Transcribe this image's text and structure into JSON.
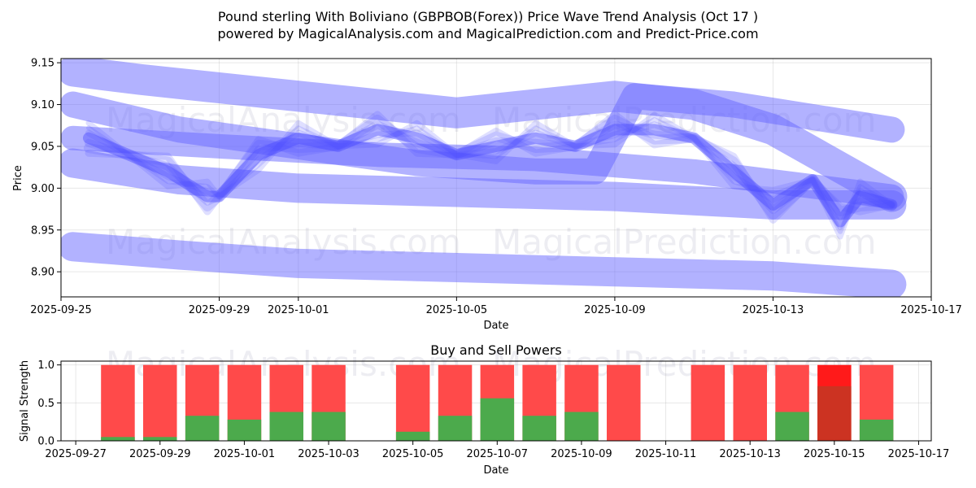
{
  "chart_data": [
    {
      "type": "line",
      "title_line1": "Pound sterling With Boliviano (GBPBOB(Forex)) Price Wave Trend Analysis (Oct 17 )",
      "title_line2": "powered by MagicalAnalysis.com and MagicalPrediction.com and Predict-Price.com",
      "xlabel": "Date",
      "ylabel": "Price",
      "x_ticks": [
        "2025-09-25",
        "2025-09-29",
        "2025-10-01",
        "2025-10-05",
        "2025-10-09",
        "2025-10-13",
        "2025-10-17"
      ],
      "x_tick_days": [
        0,
        4,
        6,
        10,
        14,
        18,
        22
      ],
      "xlim_days": [
        0,
        22
      ],
      "y_ticks": [
        "8.90",
        "8.95",
        "9.00",
        "9.05",
        "9.10",
        "9.15"
      ],
      "y_tick_values": [
        8.9,
        8.95,
        9.0,
        9.05,
        9.1,
        9.15
      ],
      "ylim": [
        8.87,
        9.155
      ],
      "watermarks": [
        "MagicalAnalysis.com",
        "MagicalPrediction.com"
      ],
      "band_color": "#6666ff",
      "series": [
        {
          "name": "price",
          "x": [
            0.7,
            1.7,
            2.7,
            3.7,
            4.0,
            5.0,
            6.0,
            7.0,
            8.0,
            9.0,
            10.0,
            11.0,
            12.0,
            13.0,
            14.0,
            15.0,
            16.0,
            17.0,
            18.0,
            19.0,
            19.7,
            20.2,
            21.0
          ],
          "values": [
            9.06,
            9.04,
            9.02,
            8.99,
            8.99,
            9.04,
            9.06,
            9.05,
            9.07,
            9.06,
            9.04,
            9.05,
            9.06,
            9.05,
            9.07,
            9.07,
            9.06,
            9.02,
            8.98,
            9.01,
            8.96,
            8.99,
            8.98
          ]
        }
      ],
      "trend_bands": [
        {
          "x": [
            0.3,
            2.0,
            4.0,
            6.0,
            8.0,
            10.0,
            12.0,
            14.0,
            16.0,
            18.0,
            21.0
          ],
          "values": [
            9.14,
            9.13,
            9.12,
            9.11,
            9.1,
            9.09,
            9.1,
            9.11,
            9.1,
            9.07,
            8.99
          ]
        },
        {
          "x": [
            0.3,
            3.0,
            6.0,
            9.0,
            12.0,
            13.5,
            14.5,
            17.0,
            21.0
          ],
          "values": [
            9.1,
            9.07,
            9.05,
            9.03,
            9.02,
            9.02,
            9.11,
            9.1,
            9.07
          ]
        },
        {
          "x": [
            0.3,
            4.0,
            8.0,
            12.0,
            16.0,
            21.0
          ],
          "values": [
            9.06,
            9.05,
            9.04,
            9.035,
            9.02,
            8.99
          ]
        },
        {
          "x": [
            0.3,
            3.0,
            6.0,
            10.0,
            14.0,
            18.0,
            21.0
          ],
          "values": [
            9.03,
            9.01,
            9.0,
            8.995,
            8.99,
            8.98,
            8.98
          ]
        },
        {
          "x": [
            0.3,
            3.0,
            6.0,
            10.0,
            14.0,
            18.0,
            21.0
          ],
          "values": [
            8.93,
            8.92,
            8.91,
            8.905,
            8.9,
            8.895,
            8.885
          ]
        }
      ]
    },
    {
      "type": "bar",
      "title": "Buy and Sell Powers",
      "xlabel": "Date",
      "ylabel": "Signal Strength",
      "x_ticks": [
        "2025-09-27",
        "2025-09-29",
        "2025-10-01",
        "2025-10-03",
        "2025-10-05",
        "2025-10-07",
        "2025-10-09",
        "2025-10-11",
        "2025-10-13",
        "2025-10-15",
        "2025-10-17"
      ],
      "x_tick_days": [
        0,
        2,
        4,
        6,
        8,
        10,
        12,
        14,
        16,
        18,
        20
      ],
      "xlim_days": [
        -0.35,
        20.3
      ],
      "y_ticks": [
        "0.0",
        "0.5",
        "1.0"
      ],
      "y_tick_values": [
        0.0,
        0.5,
        1.0
      ],
      "ylim": [
        0,
        1.05
      ],
      "buy_color": "#4caa4c",
      "sell_color": "#ff4a4a",
      "highlight_sell_color": "#ff1a1a",
      "highlight_buy_color": "#cc3322",
      "bars": [
        {
          "date": "2025-09-28",
          "day": 1,
          "buy": 0.05,
          "sell": 0.95
        },
        {
          "date": "2025-09-29",
          "day": 2,
          "buy": 0.05,
          "sell": 0.95
        },
        {
          "date": "2025-09-30",
          "day": 3,
          "buy": 0.33,
          "sell": 0.67
        },
        {
          "date": "2025-10-01",
          "day": 4,
          "buy": 0.28,
          "sell": 0.72
        },
        {
          "date": "2025-10-02",
          "day": 5,
          "buy": 0.38,
          "sell": 0.62
        },
        {
          "date": "2025-10-03",
          "day": 6,
          "buy": 0.38,
          "sell": 0.62
        },
        {
          "date": "2025-10-05",
          "day": 8,
          "buy": 0.12,
          "sell": 0.88
        },
        {
          "date": "2025-10-06",
          "day": 9,
          "buy": 0.33,
          "sell": 0.67
        },
        {
          "date": "2025-10-07",
          "day": 10,
          "buy": 0.56,
          "sell": 0.44
        },
        {
          "date": "2025-10-08",
          "day": 11,
          "buy": 0.33,
          "sell": 0.67
        },
        {
          "date": "2025-10-09",
          "day": 12,
          "buy": 0.38,
          "sell": 0.62
        },
        {
          "date": "2025-10-10",
          "day": 13,
          "buy": 0.0,
          "sell": 1.0
        },
        {
          "date": "2025-10-12",
          "day": 15,
          "buy": 0.0,
          "sell": 1.0
        },
        {
          "date": "2025-10-13",
          "day": 16,
          "buy": 0.0,
          "sell": 1.0
        },
        {
          "date": "2025-10-14",
          "day": 17,
          "buy": 0.38,
          "sell": 0.62
        },
        {
          "date": "2025-10-15",
          "day": 18,
          "buy": 0.72,
          "sell": 0.28,
          "highlight": true
        },
        {
          "date": "2025-10-16",
          "day": 19,
          "buy": 0.28,
          "sell": 0.72
        }
      ]
    }
  ]
}
